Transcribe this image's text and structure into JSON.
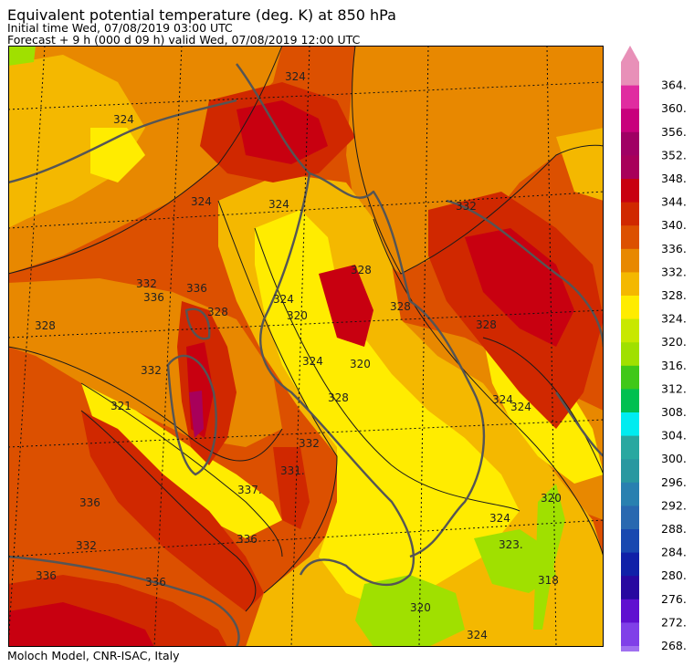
{
  "header": {
    "title": "Equivalent potential temperature (deg. K) at 850 hPa",
    "initial_time": "Initial time  Wed, 07/08/2019  03:00 UTC",
    "forecast": "Forecast  +   9 h  (000 d 09 h)  valid Wed, 07/08/2019 12:00 UTC"
  },
  "footer": {
    "credit": "Moloch Model, CNR-ISAC, Italy"
  },
  "colorbar": {
    "levels": [
      "364.",
      "360.",
      "356.",
      "352.",
      "348.",
      "344.",
      "340.",
      "336.",
      "332.",
      "328.",
      "324.",
      "320.",
      "316.",
      "312.",
      "308.",
      "304.",
      "300.",
      "296.",
      "292.",
      "288.",
      "284.",
      "280.",
      "276.",
      "272.",
      "268."
    ],
    "colors": [
      "#e890b8",
      "#e02ca0",
      "#c8007c",
      "#a00064",
      "#a8005a",
      "#c80010",
      "#d02800",
      "#dc5000",
      "#e88800",
      "#f4b800",
      "#ffec00",
      "#c8e800",
      "#a0e000",
      "#40c818",
      "#00c050",
      "#00ecf0",
      "#28a8a0",
      "#2898a0",
      "#2880b0",
      "#2868b0",
      "#1848b0",
      "#1020a8",
      "#2808a0",
      "#6010d0",
      "#8040e8",
      "#a070f0"
    ]
  },
  "map": {
    "contour_labels": [
      "324",
      "324",
      "324",
      "324",
      "324",
      "324",
      "324",
      "324",
      "328",
      "328",
      "328",
      "328",
      "328",
      "328",
      "332",
      "332",
      "332",
      "332",
      "336",
      "336",
      "336",
      "336",
      "336",
      "320",
      "320",
      "320",
      "320",
      "318",
      "323.",
      "321",
      "337.",
      "331.",
      "332",
      "336",
      "324",
      "324"
    ],
    "fill_colors": {
      "c316": "#a0e000",
      "c320": "#ffec00",
      "c324": "#f4b800",
      "c328": "#e88800",
      "c332": "#dc5000",
      "c336": "#d02800",
      "c340": "#c80010",
      "c344": "#a8005a",
      "c348": "#800040",
      "coast": "#555555",
      "frame": "#000000"
    }
  }
}
